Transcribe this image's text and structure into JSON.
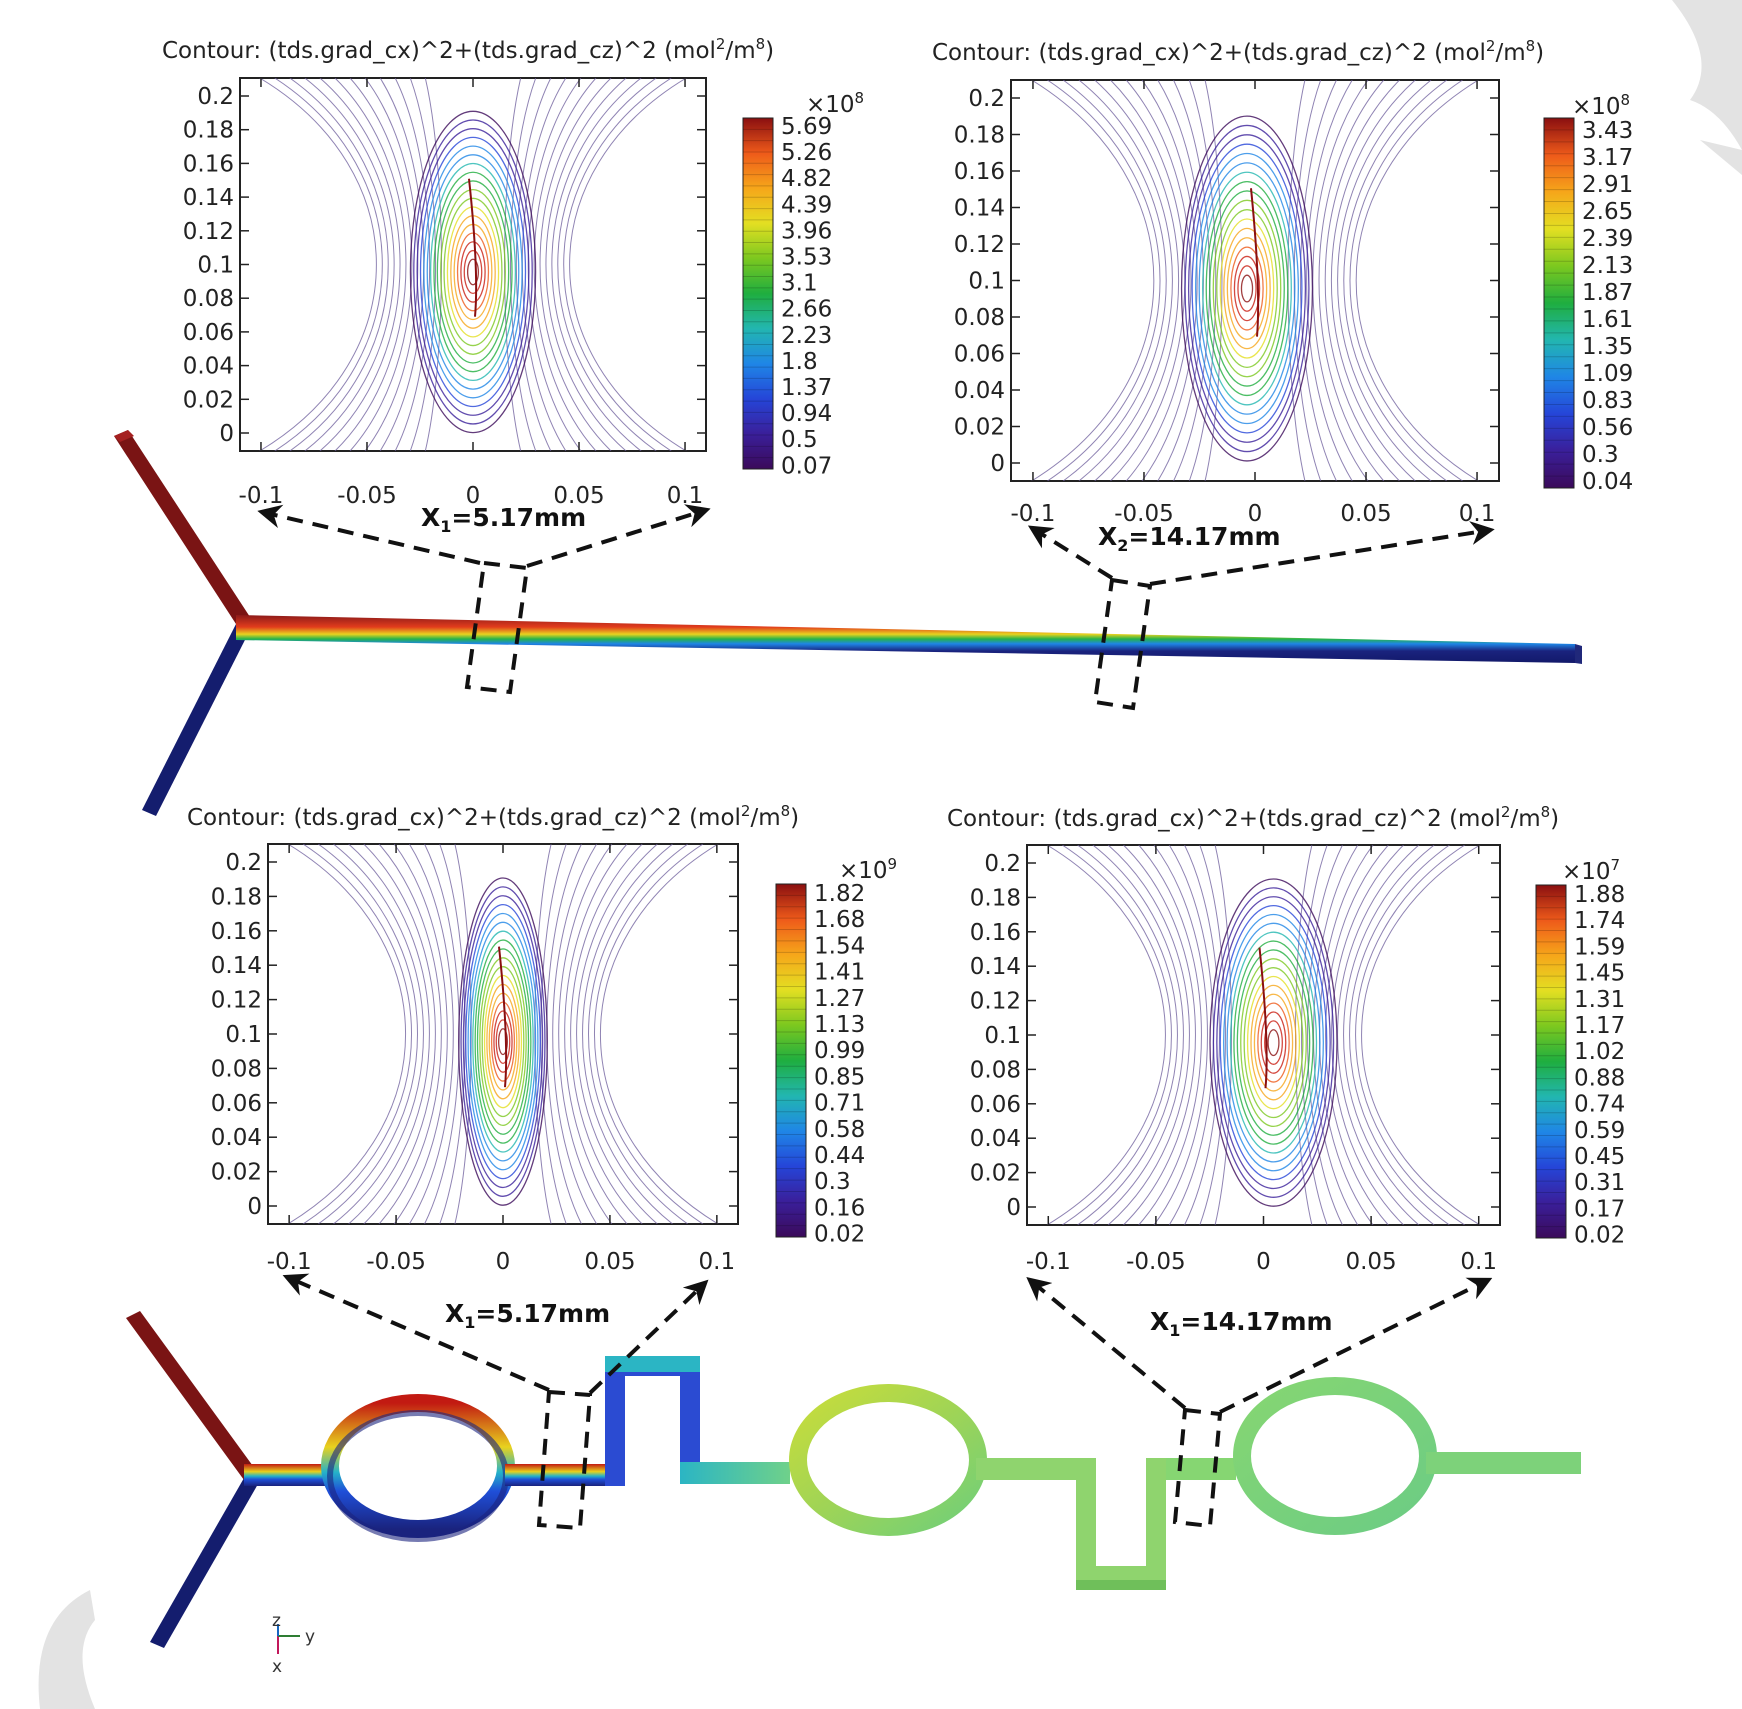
{
  "colormap": [
    "#3b0a5a",
    "#3a1f9a",
    "#2545d8",
    "#1f86e6",
    "#22b6b0",
    "#1fae3f",
    "#7cc81f",
    "#e3df22",
    "#f6a61a",
    "#ee5a1a",
    "#c91d12",
    "#8a0f10"
  ],
  "bar_colors": {
    "inlet_top": "#8b1a1a",
    "inlet_bottom": "#1a2a8c",
    "channel_warm": "#b22222",
    "channel_cold": "#1a237e"
  },
  "panels": [
    {
      "id": "top-left",
      "title_prefix": "Contour: (tds.grad_cx)^2+(tds.grad_cz)^2 (mol",
      "title_mid": "/m",
      "title_suffix": ")",
      "sup1": "2",
      "sup2": "8",
      "y_ticks": [
        "0.2",
        "0.18",
        "0.16",
        "0.14",
        "0.12",
        "0.1",
        "0.08",
        "0.06",
        "0.04",
        "0.02",
        "0"
      ],
      "x_ticks": [
        "-0.1",
        "-0.05",
        "0",
        "0.05",
        "0.1"
      ],
      "colorbar": {
        "multiplier_base": "×10",
        "multiplier_exp": "8",
        "ticks": [
          "5.69",
          "5.26",
          "4.82",
          "4.39",
          "3.96",
          "3.53",
          "3.1",
          "2.66",
          "2.23",
          "1.8",
          "1.37",
          "0.94",
          "0.5",
          "0.07"
        ]
      },
      "position_label": {
        "main": "X",
        "sub": "1",
        "rest": "=5.17mm"
      }
    },
    {
      "id": "top-right",
      "title_prefix": "Contour: (tds.grad_cx)^2+(tds.grad_cz)^2 (mol",
      "title_mid": "/m",
      "title_suffix": ")",
      "sup1": "2",
      "sup2": "8",
      "y_ticks": [
        "0.2",
        "0.18",
        "0.16",
        "0.14",
        "0.12",
        "0.1",
        "0.08",
        "0.06",
        "0.04",
        "0.02",
        "0"
      ],
      "x_ticks": [
        "-0.1",
        "-0.05",
        "0",
        "0.05",
        "0.1"
      ],
      "colorbar": {
        "multiplier_base": "×10",
        "multiplier_exp": "8",
        "ticks": [
          "3.43",
          "3.17",
          "2.91",
          "2.65",
          "2.39",
          "2.13",
          "1.87",
          "1.61",
          "1.35",
          "1.09",
          "0.83",
          "0.56",
          "0.3",
          "0.04"
        ]
      },
      "position_label": {
        "main": "X",
        "sub": "2",
        "rest": "=14.17mm"
      }
    },
    {
      "id": "bottom-left",
      "title_prefix": "Contour: (tds.grad_cx)^2+(tds.grad_cz)^2 (mol",
      "title_mid": "/m",
      "title_suffix": ")",
      "sup1": "2",
      "sup2": "8",
      "y_ticks": [
        "0.2",
        "0.18",
        "0.16",
        "0.14",
        "0.12",
        "0.1",
        "0.08",
        "0.06",
        "0.04",
        "0.02",
        "0"
      ],
      "x_ticks": [
        "-0.1",
        "-0.05",
        "0",
        "0.05",
        "0.1"
      ],
      "colorbar": {
        "multiplier_base": "×10",
        "multiplier_exp": "9",
        "ticks": [
          "1.82",
          "1.68",
          "1.54",
          "1.41",
          "1.27",
          "1.13",
          "0.99",
          "0.85",
          "0.71",
          "0.58",
          "0.44",
          "0.3",
          "0.16",
          "0.02"
        ]
      },
      "position_label": {
        "main": "X",
        "sub": "1",
        "rest": "=5.17mm"
      }
    },
    {
      "id": "bottom-right",
      "title_prefix": "Contour: (tds.grad_cx)^2+(tds.grad_cz)^2 (mol",
      "title_mid": "/m",
      "title_suffix": ")",
      "sup1": "2",
      "sup2": "8",
      "y_ticks": [
        "0.2",
        "0.18",
        "0.16",
        "0.14",
        "0.12",
        "0.1",
        "0.08",
        "0.06",
        "0.04",
        "0.02",
        "0"
      ],
      "x_ticks": [
        "-0.1",
        "-0.05",
        "0",
        "0.05",
        "0.1"
      ],
      "colorbar": {
        "multiplier_base": "×10",
        "multiplier_exp": "7",
        "ticks": [
          "1.88",
          "1.74",
          "1.59",
          "1.45",
          "1.31",
          "1.17",
          "1.02",
          "0.88",
          "0.74",
          "0.59",
          "0.45",
          "0.31",
          "0.17",
          "0.02"
        ]
      },
      "position_label": {
        "main": "X",
        "sub": "1",
        "rest": "=14.17mm"
      }
    }
  ],
  "axes_triad": {
    "z": "z",
    "y": "y",
    "x": "x"
  }
}
